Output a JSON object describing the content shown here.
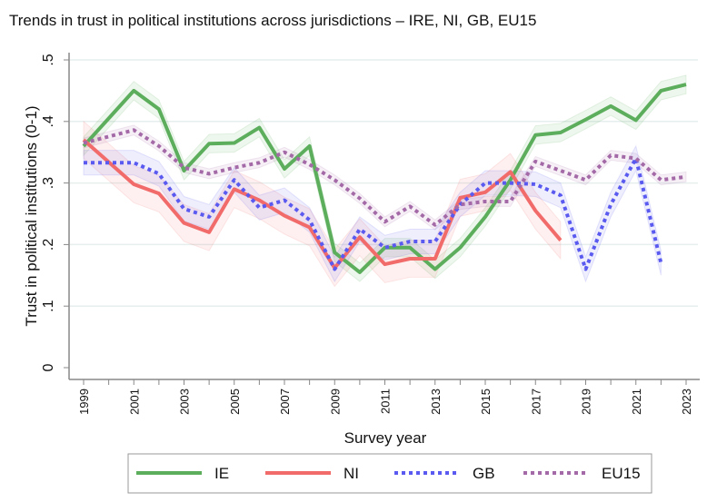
{
  "chart_data": {
    "type": "line",
    "title": "Trends in trust in political institutions across jurisdictions – IRE, NI, GB, EU15",
    "xlabel": "Survey year",
    "ylabel": "Trust in political institutions (0-1)",
    "xlim": [
      1999,
      2023
    ],
    "ylim": [
      0,
      0.5
    ],
    "yticks": [
      {
        "v": 0,
        "l": "0"
      },
      {
        "v": 0.1,
        "l": ".1"
      },
      {
        "v": 0.2,
        "l": ".2"
      },
      {
        "v": 0.3,
        "l": ".3"
      },
      {
        "v": 0.4,
        "l": ".4"
      },
      {
        "v": 0.5,
        "l": ".5"
      }
    ],
    "xticks": [
      "1999",
      "2001",
      "2003",
      "2005",
      "2007",
      "2009",
      "2011",
      "2013",
      "2015",
      "2017",
      "2019",
      "2021",
      "2023"
    ],
    "grid": true,
    "legend": "bottom",
    "series": [
      {
        "name": "IE",
        "color": "#5cae5c",
        "style": "solid",
        "ci": 0.015,
        "x": [
          1999,
          2001,
          2002,
          2003,
          2004,
          2005,
          2006,
          2007,
          2008,
          2009,
          2010,
          2011,
          2012,
          2013,
          2014,
          2015,
          2016,
          2017,
          2018,
          2019,
          2020,
          2021,
          2022,
          2023
        ],
        "values": [
          0.36,
          0.45,
          0.42,
          0.32,
          0.364,
          0.365,
          0.39,
          0.323,
          0.36,
          0.187,
          0.155,
          0.195,
          0.195,
          0.16,
          0.195,
          0.245,
          0.305,
          0.378,
          0.382,
          0.403,
          0.425,
          0.402,
          0.45,
          0.46
        ]
      },
      {
        "name": "NI",
        "color": "#f26b6b",
        "style": "solid",
        "ci": 0.03,
        "x": [
          1999,
          2001,
          2002,
          2003,
          2004,
          2005,
          2006,
          2007,
          2008,
          2009,
          2010,
          2011,
          2012,
          2013,
          2014,
          2015,
          2016,
          2017,
          2018
        ],
        "values": [
          0.37,
          0.298,
          0.283,
          0.235,
          0.22,
          0.29,
          0.272,
          0.247,
          0.228,
          0.162,
          0.212,
          0.168,
          0.177,
          0.177,
          0.276,
          0.285,
          0.318,
          0.255,
          0.207
        ]
      },
      {
        "name": "GB",
        "color": "#5a5af0",
        "style": "dot",
        "ci": 0.02,
        "x": [
          1999,
          2001,
          2002,
          2003,
          2004,
          2005,
          2006,
          2007,
          2008,
          2009,
          2010,
          2011,
          2012,
          2013,
          2014,
          2015,
          2016,
          2017,
          2018,
          2019,
          2020,
          2021,
          2022
        ],
        "values": [
          0.333,
          0.333,
          0.315,
          0.258,
          0.245,
          0.305,
          0.26,
          0.272,
          0.24,
          0.16,
          0.225,
          0.195,
          0.205,
          0.205,
          0.265,
          0.3,
          0.3,
          0.298,
          0.28,
          0.16,
          0.265,
          0.34,
          0.17
        ]
      },
      {
        "name": "EU15",
        "color": "#a46aa8",
        "style": "dot",
        "ci": 0.008,
        "x": [
          1999,
          2001,
          2002,
          2003,
          2004,
          2005,
          2006,
          2007,
          2008,
          2009,
          2010,
          2011,
          2012,
          2013,
          2014,
          2015,
          2016,
          2017,
          2018,
          2019,
          2020,
          2021,
          2022,
          2023
        ],
        "values": [
          0.365,
          0.386,
          0.36,
          0.325,
          0.315,
          0.325,
          0.333,
          0.35,
          0.33,
          0.305,
          0.275,
          0.237,
          0.262,
          0.232,
          0.265,
          0.27,
          0.27,
          0.335,
          0.32,
          0.305,
          0.345,
          0.34,
          0.305,
          0.31
        ]
      }
    ]
  }
}
